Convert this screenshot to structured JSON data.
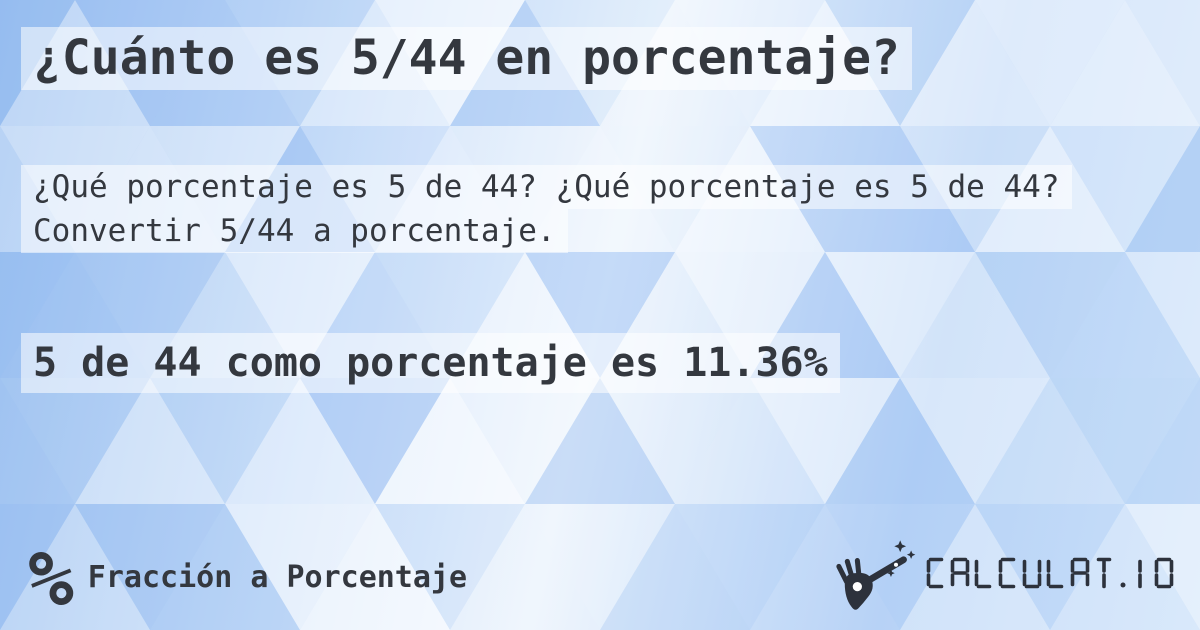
{
  "card": {
    "title": "¿Cuánto es 5/44 en porcentaje?",
    "description_lines": [
      "¿Qué porcentaje es 5 de 44? ¿Qué porcentaje es 5 de 44?",
      "Convertir 5/44 a porcentaje."
    ],
    "answer": "5 de 44 como porcentaje es 11.36%"
  },
  "footer": {
    "percent_symbol": "%",
    "category_label": "Fracción a Porcentaje",
    "logo_text": "CALCULAT.IO"
  },
  "theme": {
    "text_color": "#34383f",
    "logo_color": "#2d323c",
    "highlight_band_color": "rgba(255,255,255,0.55)",
    "bg_gradient": [
      "#9fc3f1",
      "#cfe2fa",
      "#eef5fd",
      "#bcd6f7",
      "#cfe3fa"
    ],
    "mosaic_white": "#ffffff",
    "mosaic_blue": "#7fadee"
  }
}
